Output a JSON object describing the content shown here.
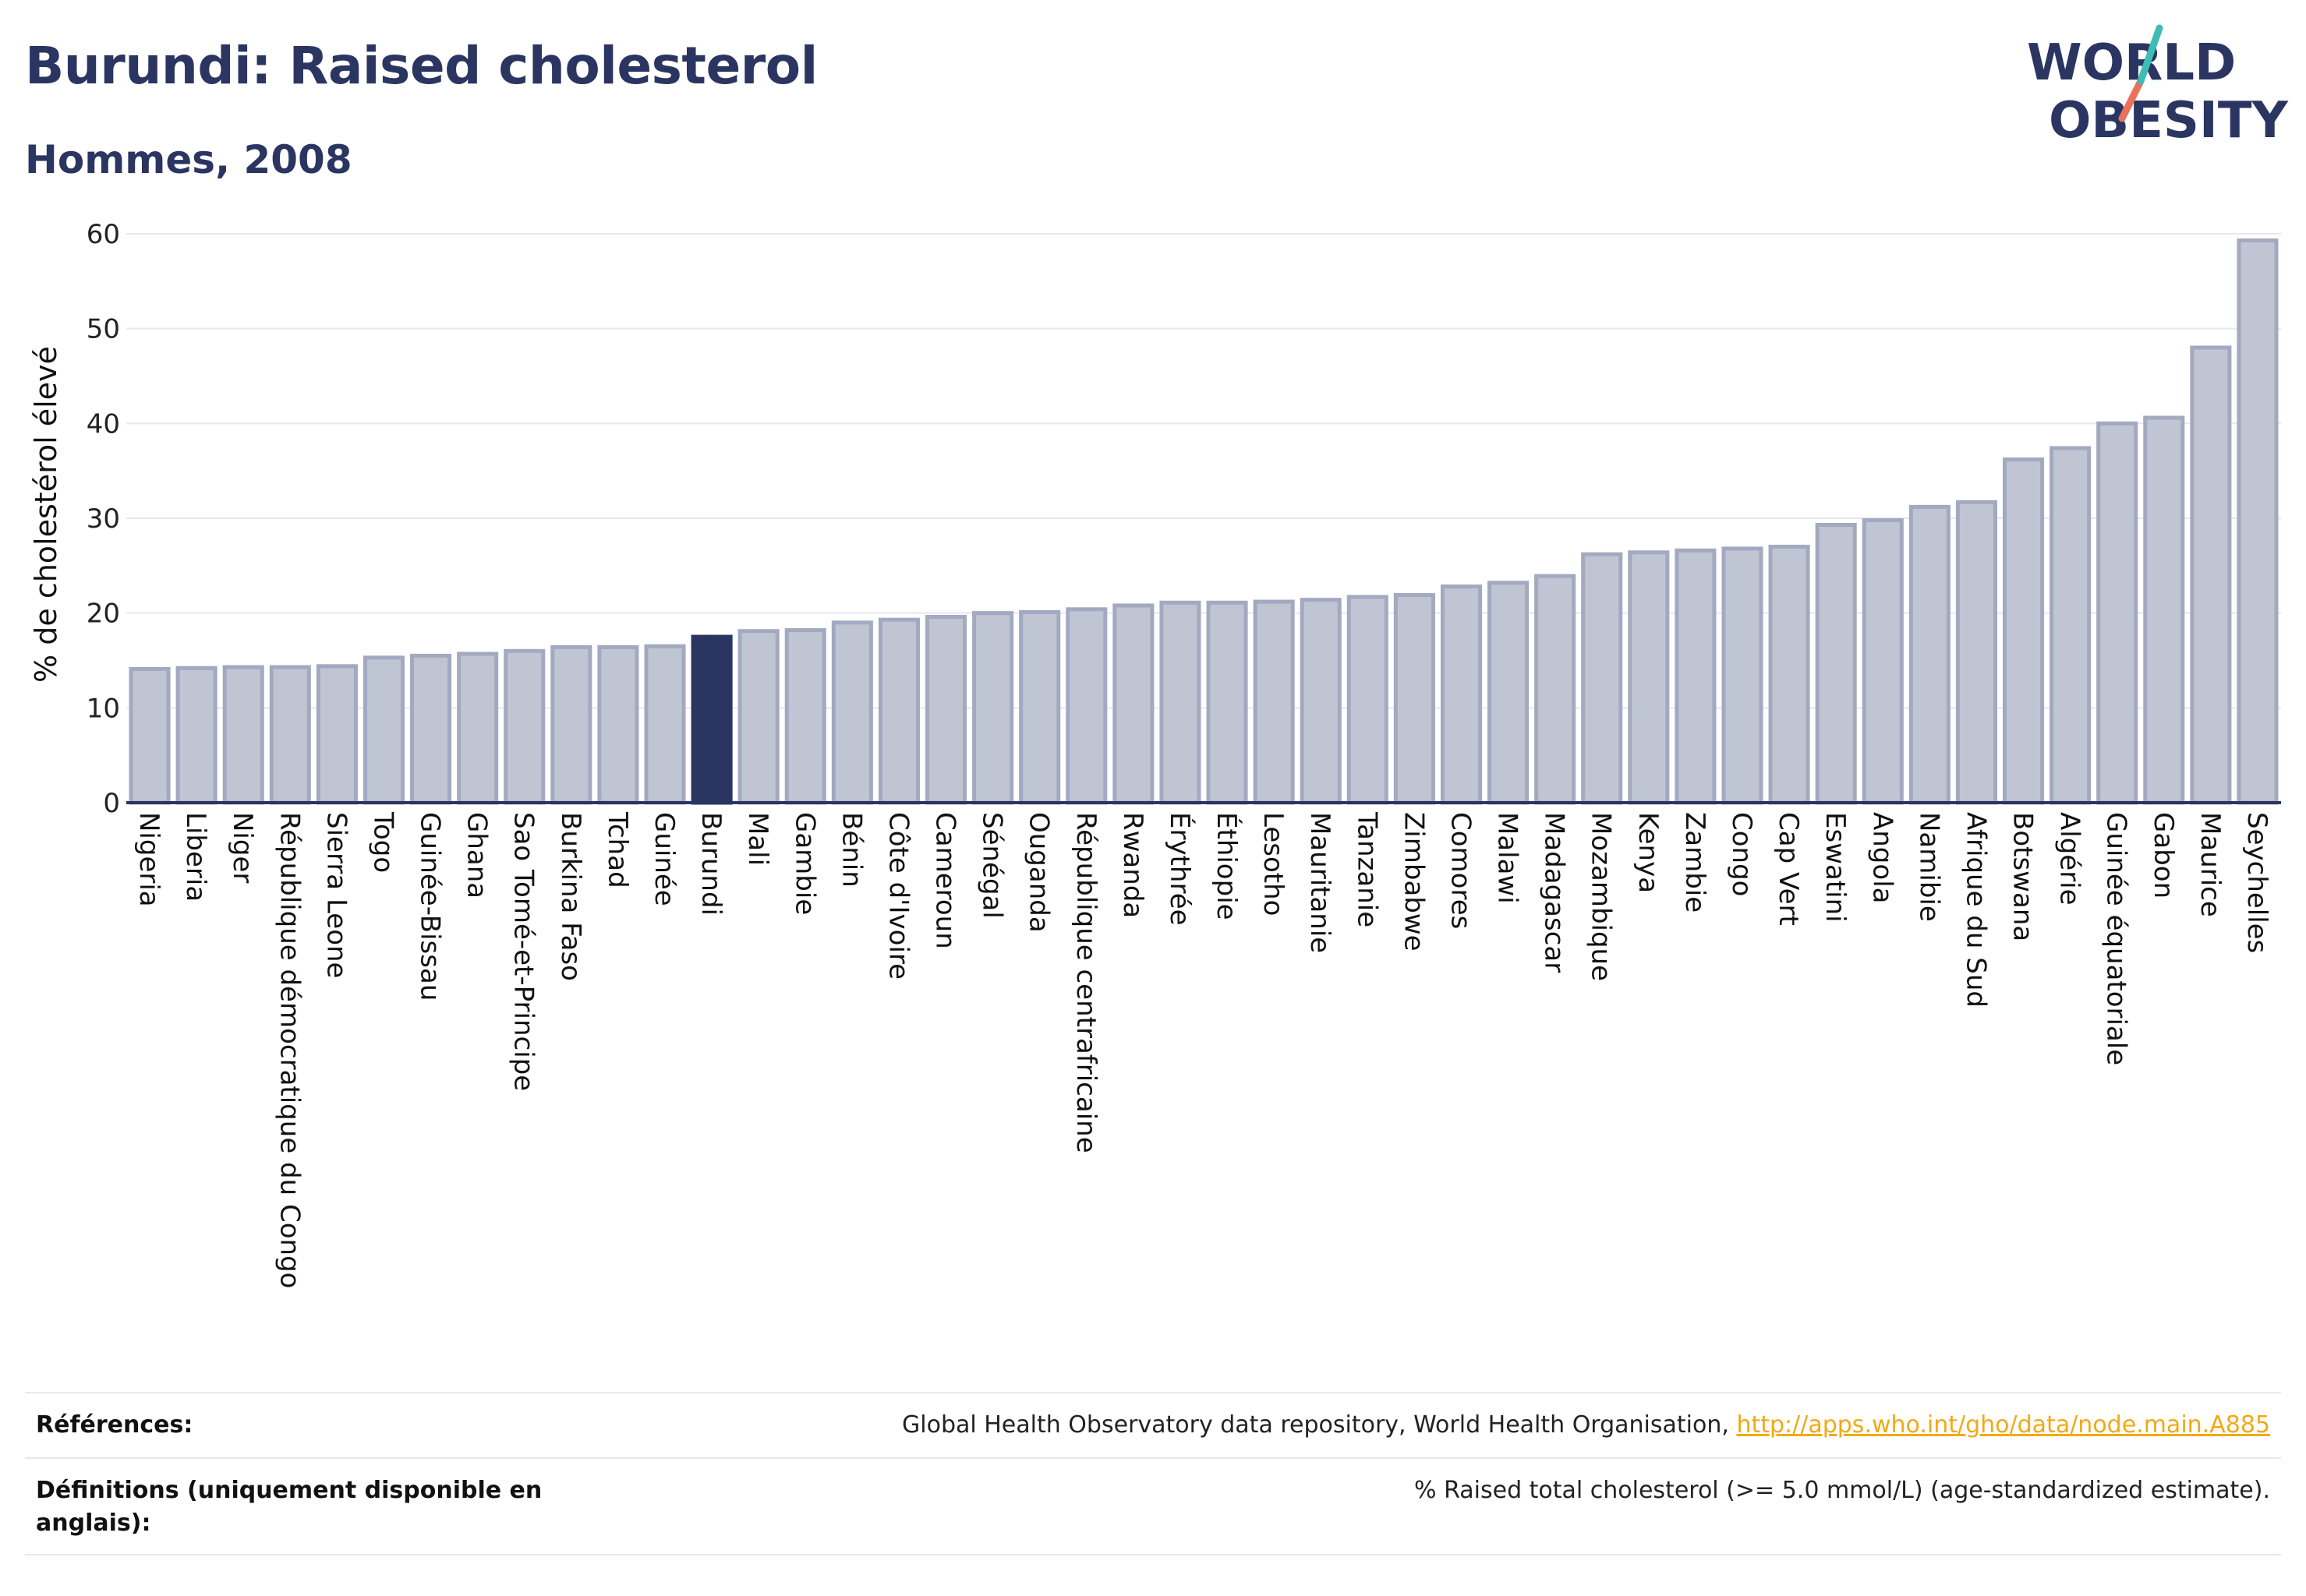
{
  "header": {
    "title": "Burundi: Raised cholesterol",
    "subtitle": "Hommes, 2008"
  },
  "logo": {
    "line1": "WORLD",
    "line2": "OBESITY"
  },
  "chart_data": {
    "type": "bar",
    "ylabel": "% de cholestérol élevé",
    "ylim": [
      0,
      60
    ],
    "yticks": [
      0,
      10,
      20,
      30,
      40,
      50,
      60
    ],
    "highlight": "Burundi",
    "colors": {
      "bar": "#c0c5d3",
      "bar_edge": "#a2a9c0",
      "highlight": "#2b3561",
      "grid": "#e6e8ef",
      "axis": "#2b3561"
    },
    "categories": [
      "Nigeria",
      "Liberia",
      "Niger",
      "République démocratique du Congo",
      "Sierra Leone",
      "Togo",
      "Guinée-Bissau",
      "Ghana",
      "Sao Tomé-et-Principe",
      "Burkina Faso",
      "Tchad",
      "Guinée",
      "Burundi",
      "Mali",
      "Gambie",
      "Bénin",
      "Côte d'Ivoire",
      "Cameroun",
      "Sénégal",
      "Ouganda",
      "République centrafricaine",
      "Rwanda",
      "Érythrée",
      "Éthiopie",
      "Lesotho",
      "Mauritanie",
      "Tanzanie",
      "Zimbabwe",
      "Comores",
      "Malawi",
      "Madagascar",
      "Mozambique",
      "Kenya",
      "Zambie",
      "Congo",
      "Cap Vert",
      "Eswatini",
      "Angola",
      "Namibie",
      "Afrique du Sud",
      "Botswana",
      "Algérie",
      "Guinée équatoriale",
      "Gabon",
      "Maurice",
      "Seychelles"
    ],
    "values": [
      14.1,
      14.2,
      14.3,
      14.3,
      14.4,
      15.3,
      15.5,
      15.7,
      16.0,
      16.4,
      16.4,
      16.5,
      17.5,
      18.1,
      18.2,
      19.0,
      19.3,
      19.6,
      20.0,
      20.1,
      20.4,
      20.8,
      21.1,
      21.1,
      21.2,
      21.4,
      21.7,
      21.9,
      22.8,
      23.2,
      23.9,
      26.2,
      26.4,
      26.6,
      26.8,
      27.0,
      29.3,
      29.8,
      31.2,
      31.7,
      36.2,
      37.4,
      40.0,
      40.6,
      48.0,
      59.3
    ]
  },
  "footer": {
    "references_label": "Références:",
    "references_text": "Global Health Observatory data repository, World Health Organisation, ",
    "references_link": "http://apps.who.int/gho/data/node.main.A885",
    "definitions_label": "Définitions (uniquement disponible en anglais):",
    "definitions_text": "% Raised total cholesterol (>= 5.0 mmol/L) (age-standardized estimate)."
  }
}
